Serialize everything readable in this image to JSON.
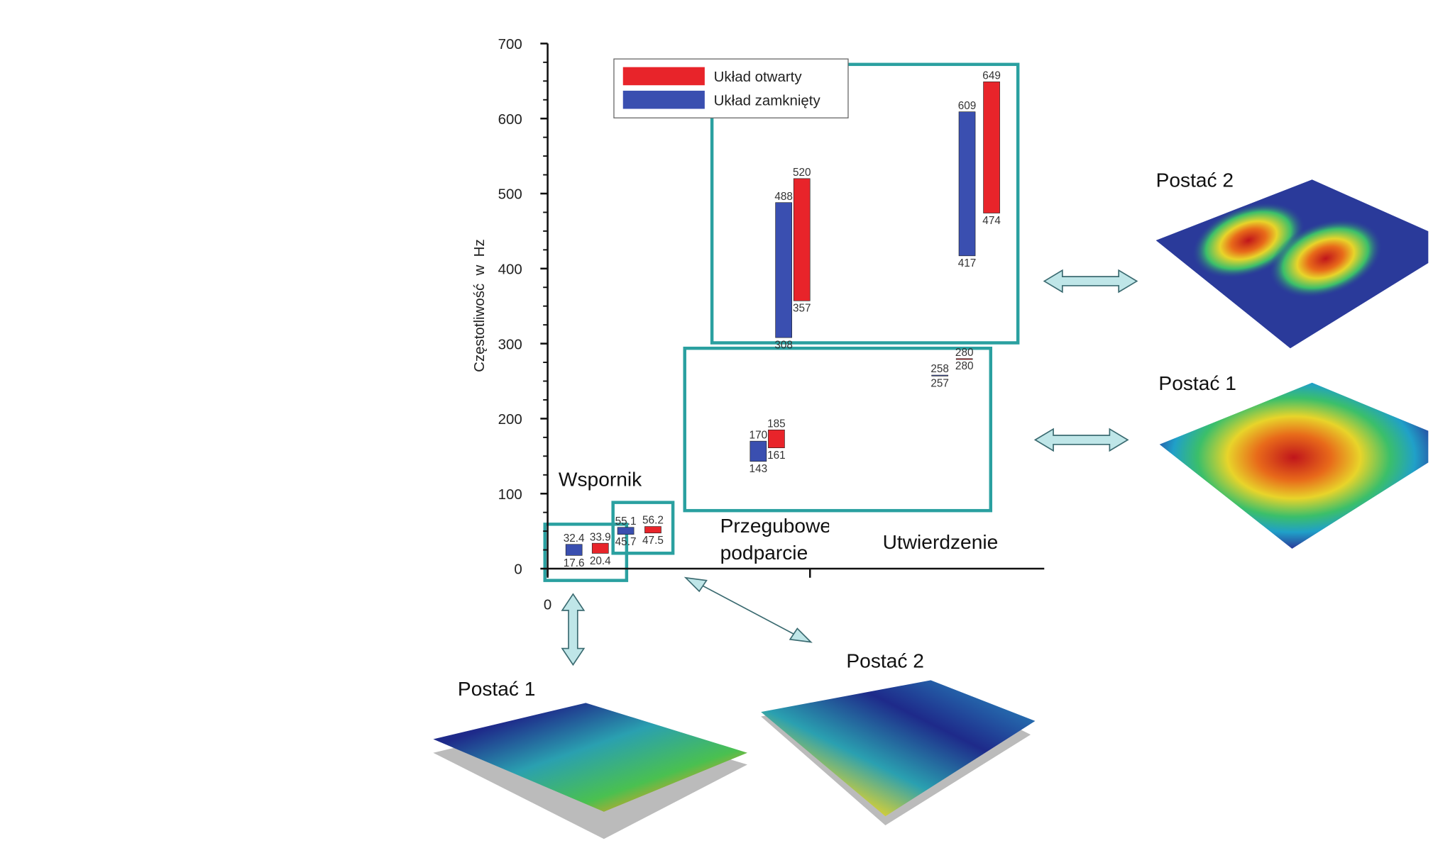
{
  "chart_data": {
    "type": "range-bar",
    "y_label": "Częstotliwość  w  Hz",
    "categories": [
      "Wspornik",
      null,
      "Przegubowe podparcie",
      null,
      "Utwierdzenie",
      null
    ],
    "series": [
      {
        "name": "Układ zamknięty",
        "color": "#3a4fb0",
        "low": [
          17.6,
          45.7,
          143,
          308,
          257,
          417
        ],
        "high": [
          32.4,
          55.1,
          170,
          488,
          258,
          609
        ]
      },
      {
        "name": "Układ otwarty",
        "color": "#e8242a",
        "low": [
          20.4,
          47.5,
          161,
          357,
          280,
          474
        ],
        "high": [
          33.9,
          56.2,
          185,
          520,
          280,
          649
        ]
      }
    ],
    "ylim": [
      0,
      700
    ],
    "yticks": [
      0,
      100,
      200,
      300,
      400,
      500,
      600,
      700
    ],
    "xticks": [
      0
    ]
  },
  "mode_images": [
    {
      "label": "Postać 2"
    },
    {
      "label": "Postać 1"
    },
    {
      "label": "Postać 1"
    },
    {
      "label": "Postać 2"
    }
  ]
}
